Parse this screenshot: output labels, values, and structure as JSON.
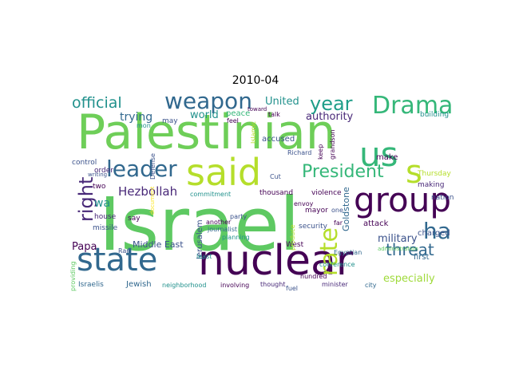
{
  "title": "2010-04",
  "palette": {
    "c1": "#440154",
    "c2": "#3b528b",
    "c3": "#21918c",
    "c4": "#5ec962",
    "c5": "#b5de2b",
    "c6": "#31688e",
    "c7": "#35b779",
    "c8": "#482878",
    "c9": "#1f9e89",
    "c10": "#26828e",
    "c11": "#6ece58",
    "c12": "#fde725",
    "c13": "#9fda3a"
  },
  "words": [
    {
      "text": "Israel",
      "color": "#5ec962"
    },
    {
      "text": "Palestinian",
      "color": "#6ece58"
    },
    {
      "text": "nuclear",
      "color": "#440154"
    },
    {
      "text": "state",
      "color": "#31688e"
    },
    {
      "text": "said",
      "color": "#b5de2b"
    },
    {
      "text": "group",
      "color": "#440154"
    },
    {
      "text": "us",
      "color": "#35b779"
    },
    {
      "text": "s",
      "color": "#b5de2b"
    },
    {
      "text": "Drama",
      "color": "#35b779"
    },
    {
      "text": "weapon",
      "color": "#31688e"
    },
    {
      "text": "leader",
      "color": "#31688e"
    },
    {
      "text": "year",
      "color": "#1f9e89"
    },
    {
      "text": "official",
      "color": "#21918c"
    },
    {
      "text": "President",
      "color": "#35b779"
    },
    {
      "text": "right",
      "color": "#482878"
    },
    {
      "text": "ha",
      "color": "#31688e"
    },
    {
      "text": "threat",
      "color": "#31688e"
    },
    {
      "text": "Hezbollah",
      "color": "#482878"
    },
    {
      "text": "rate",
      "color": "#b5de2b"
    },
    {
      "text": "trying",
      "color": "#31688e"
    },
    {
      "text": "world",
      "color": "#21918c"
    },
    {
      "text": "United",
      "color": "#21918c"
    },
    {
      "text": "military",
      "color": "#3b528b"
    },
    {
      "text": "especially",
      "color": "#9fda3a"
    },
    {
      "text": "Papa",
      "color": "#440154"
    },
    {
      "text": "Middle East",
      "color": "#3b528b"
    },
    {
      "text": "authority",
      "color": "#482878"
    },
    {
      "text": "wa",
      "color": "#21918c"
    },
    {
      "text": "peace",
      "color": "#35b779"
    },
    {
      "text": "accused",
      "color": "#3b528b"
    },
    {
      "text": "Jerusalem",
      "color": "#3b528b"
    },
    {
      "text": "Jewish",
      "color": "#31688e"
    },
    {
      "text": "missile",
      "color": "#3b528b"
    },
    {
      "text": "two",
      "color": "#440154"
    },
    {
      "text": "house",
      "color": "#482878"
    },
    {
      "text": "say",
      "color": "#440154"
    },
    {
      "text": "order",
      "color": "#482878"
    },
    {
      "text": "control",
      "color": "#3b528b"
    },
    {
      "text": "Israelis",
      "color": "#31688e"
    },
    {
      "text": "first",
      "color": "#31688e"
    },
    {
      "text": "attack",
      "color": "#440154"
    },
    {
      "text": "Goldstone",
      "color": "#31688e"
    },
    {
      "text": "make",
      "color": "#440154"
    },
    {
      "text": "security",
      "color": "#3b528b"
    },
    {
      "text": "charged",
      "color": "#3b528b"
    },
    {
      "text": "making",
      "color": "#482878"
    },
    {
      "text": "Thursday",
      "color": "#b5de2b"
    },
    {
      "text": "nation",
      "color": "#3b528b"
    },
    {
      "text": "violence",
      "color": "#440154"
    },
    {
      "text": "mayor",
      "color": "#440154"
    },
    {
      "text": "thousand",
      "color": "#440154"
    },
    {
      "text": "commitment",
      "color": "#21918c"
    },
    {
      "text": "party",
      "color": "#3b528b"
    },
    {
      "text": "planning",
      "color": "#21918c"
    },
    {
      "text": "journalist",
      "color": "#31688e"
    },
    {
      "text": "another",
      "color": "#440154"
    },
    {
      "text": "West",
      "color": "#440154"
    },
    {
      "text": "minister",
      "color": "#482878"
    },
    {
      "text": "city",
      "color": "#31688e"
    },
    {
      "text": "fuel",
      "color": "#3b528b"
    },
    {
      "text": "thought",
      "color": "#482878"
    },
    {
      "text": "involving",
      "color": "#440154"
    },
    {
      "text": "neighborhood",
      "color": "#21918c"
    },
    {
      "text": "providing",
      "color": "#5ec962"
    },
    {
      "text": "conference",
      "color": "#21918c"
    },
    {
      "text": "Cut",
      "color": "#3b528b"
    },
    {
      "text": "Richard",
      "color": "#3b528b"
    },
    {
      "text": "talk",
      "color": "#440154"
    },
    {
      "text": "building",
      "color": "#21918c"
    },
    {
      "text": "may",
      "color": "#3b528b"
    },
    {
      "text": "one",
      "color": "#3b528b"
    },
    {
      "text": "far",
      "color": "#440154"
    },
    {
      "text": "mon",
      "color": "#21918c"
    },
    {
      "text": "least",
      "color": "#21918c"
    },
    {
      "text": "Ran",
      "color": "#3b528b"
    },
    {
      "text": "writing",
      "color": "#3b528b"
    },
    {
      "text": "produce",
      "color": "#b5de2b"
    },
    {
      "text": "Defense",
      "color": "#3b528b"
    },
    {
      "text": "grandson",
      "color": "#440154"
    },
    {
      "text": "keep",
      "color": "#440154"
    },
    {
      "text": "Islamic",
      "color": "#b5de2b"
    },
    {
      "text": "hundred",
      "color": "#440154"
    },
    {
      "text": "envoy",
      "color": "#440154"
    },
    {
      "text": "Egyptian",
      "color": "#31688e"
    },
    {
      "text": "feel",
      "color": "#440154"
    },
    {
      "text": "toward",
      "color": "#440154"
    },
    {
      "text": "administration",
      "color": "#5ec962"
    },
    {
      "text": "document",
      "color": "#fde725"
    }
  ]
}
